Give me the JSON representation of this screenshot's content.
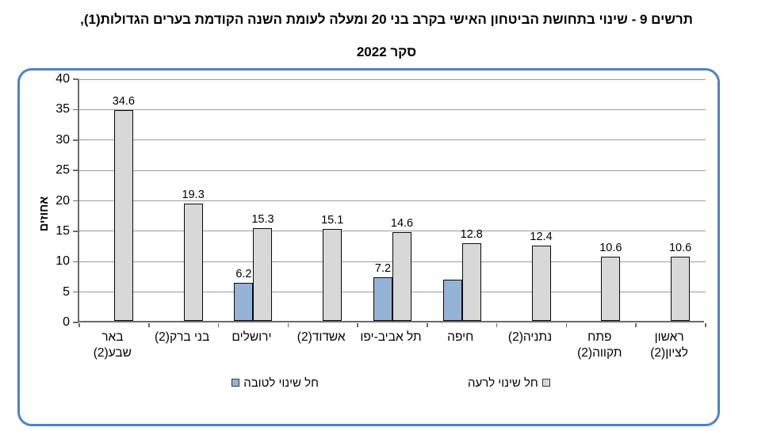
{
  "title": {
    "line1": "תרשים 9 - שינוי בתחושת הביטחון האישי בקרב בני 20 ומעלה לעומת השנה הקודמת בערים הגדולות(1),",
    "line2": "סקר 2022"
  },
  "frame": {
    "border_color": "#4E81CE",
    "background": "#ffffff"
  },
  "legend": {
    "good": {
      "label": "חל שינוי לטובה",
      "color": "#95B3D7"
    },
    "bad": {
      "label": "חל שינוי לרעה",
      "color": "#D8D8D8"
    }
  },
  "chart_data": {
    "type": "bar",
    "title": "תרשים 9 - שינוי בתחושת הביטחון האישי בקרב בני 20 ומעלה לעומת השנה הקודמת בערים הגדולות(1), סקר 2022",
    "ylabel": "אחוזים",
    "xlabel": "",
    "ylim": [
      0,
      40
    ],
    "ytick_step": 5,
    "grid": true,
    "legend_position": "bottom",
    "bar_border_color": "#0a0a0a",
    "gridline_color": "#9c9c9c",
    "axis_color": "#6b6b6b",
    "categories": [
      {
        "name": "באר שבע(2)",
        "lines": [
          "באר",
          "שבע(2)"
        ]
      },
      {
        "name": "בני ברק(2)",
        "lines": [
          "בני ברק(2)"
        ]
      },
      {
        "name": "ירושלים",
        "lines": [
          "ירושלים"
        ]
      },
      {
        "name": "אשדוד(2)",
        "lines": [
          "אשדוד(2)"
        ]
      },
      {
        "name": "תל אביב-יפו",
        "lines": [
          "תל אביב-יפו"
        ]
      },
      {
        "name": "חיפה",
        "lines": [
          "חיפה"
        ]
      },
      {
        "name": "נתניה(2)",
        "lines": [
          "נתניה(2)"
        ]
      },
      {
        "name": "פתח תקווה(2)",
        "lines": [
          "פתח",
          "תקווה(2)"
        ]
      },
      {
        "name": "ראשון לציון(2)",
        "lines": [
          "ראשון",
          "לציון(2)"
        ]
      }
    ],
    "series": [
      {
        "key": "good",
        "name": "חל שינוי לטובה",
        "color": "#95B3D7",
        "values": [
          null,
          null,
          6.2,
          null,
          7.2,
          6.8,
          null,
          null,
          null
        ],
        "labels": [
          "",
          "",
          "6.2",
          "",
          "7.2",
          "",
          "",
          "",
          ""
        ]
      },
      {
        "key": "bad",
        "name": "חל שינוי לרעה",
        "color": "#D8D8D8",
        "values": [
          34.6,
          19.3,
          15.3,
          15.1,
          14.6,
          12.8,
          12.4,
          10.6,
          10.6
        ],
        "labels": [
          "34.6",
          "19.3",
          "15.3",
          "15.1",
          "14.6",
          "12.8",
          "12.4",
          "10.6",
          "10.6"
        ]
      }
    ]
  }
}
